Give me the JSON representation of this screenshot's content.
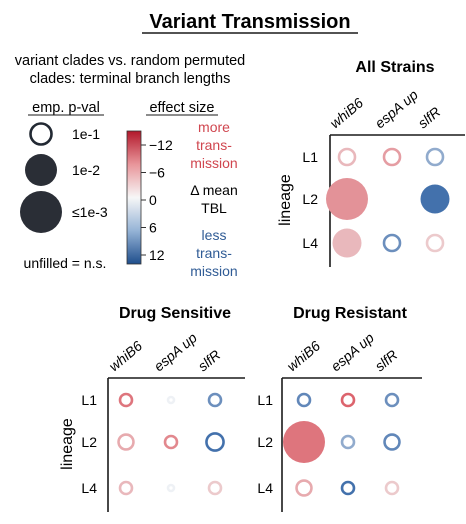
{
  "figure": {
    "title": "Variant Transmission",
    "subtitle_line1": "variant clades vs. random permuted",
    "subtitle_line2": "clades: terminal branch lengths",
    "pval_legend": {
      "heading": "emp. p-val",
      "entries": [
        "1e-1",
        "1e-2",
        "≤1e-3"
      ],
      "note": "unfilled = n.s."
    },
    "effect_legend": {
      "heading": "effect size",
      "ticks": [
        "−12",
        "−6",
        "0",
        "6",
        "12"
      ],
      "more_label": [
        "more",
        "trans-",
        "mission"
      ],
      "delta_label": [
        "Δ mean",
        "TBL"
      ],
      "less_label": [
        "less",
        "trans-",
        "mission"
      ]
    },
    "colors": {
      "negative": "#d9545e",
      "positive": "#3a6aa8",
      "text": "#1a1a1a",
      "more_text": "#d0464f",
      "less_text": "#2f5b95"
    }
  },
  "chart_data": [
    {
      "type": "scatter",
      "title": "All Strains",
      "x_categories": [
        "whiB6",
        "espA up",
        "slfR"
      ],
      "y_categories": [
        "L1",
        "L2",
        "L4"
      ],
      "ylabel": "lineage",
      "effect_range": [
        -12,
        12
      ],
      "points": [
        {
          "x": "whiB6",
          "y": "L1",
          "effect": -2,
          "pval": 0.1,
          "filled": false
        },
        {
          "x": "espA up",
          "y": "L1",
          "effect": -4,
          "pval": 0.1,
          "filled": false
        },
        {
          "x": "slfR",
          "y": "L1",
          "effect": 4,
          "pval": 0.1,
          "filled": false
        },
        {
          "x": "whiB6",
          "y": "L2",
          "effect": -5,
          "pval": 0.001,
          "filled": true
        },
        {
          "x": "slfR",
          "y": "L2",
          "effect": 11,
          "pval": 0.01,
          "filled": true
        },
        {
          "x": "whiB6",
          "y": "L4",
          "effect": -2,
          "pval": 0.01,
          "filled": true
        },
        {
          "x": "espA up",
          "y": "L4",
          "effect": 7,
          "pval": 0.1,
          "filled": false
        },
        {
          "x": "slfR",
          "y": "L4",
          "effect": -1,
          "pval": 0.1,
          "filled": false
        }
      ]
    },
    {
      "type": "scatter",
      "title": "Drug Sensitive",
      "x_categories": [
        "whiB6",
        "espA up",
        "slfR"
      ],
      "y_categories": [
        "L1",
        "L2",
        "L4"
      ],
      "ylabel": "lineage",
      "effect_range": [
        -12,
        12
      ],
      "points": [
        {
          "x": "whiB6",
          "y": "L1",
          "effect": -8,
          "pval": 0.1,
          "filled": false
        },
        {
          "x": "espA up",
          "y": "L1",
          "effect": 0,
          "pval": 0.5,
          "filled": false
        },
        {
          "x": "slfR",
          "y": "L1",
          "effect": 7,
          "pval": 0.1,
          "filled": false
        },
        {
          "x": "whiB6",
          "y": "L2",
          "effect": -3,
          "pval": 0.05,
          "filled": false
        },
        {
          "x": "espA up",
          "y": "L2",
          "effect": -6,
          "pval": 0.3,
          "filled": false
        },
        {
          "x": "slfR",
          "y": "L2",
          "effect": 11,
          "pval": 0.03,
          "filled": false
        },
        {
          "x": "whiB6",
          "y": "L4",
          "effect": -2,
          "pval": 0.1,
          "filled": false
        },
        {
          "x": "espA up",
          "y": "L4",
          "effect": 0,
          "pval": 0.9,
          "filled": false
        },
        {
          "x": "slfR",
          "y": "L4",
          "effect": -1,
          "pval": 0.3,
          "filled": false
        }
      ]
    },
    {
      "type": "scatter",
      "title": "Drug Resistant",
      "x_categories": [
        "whiB6",
        "espA up",
        "slfR"
      ],
      "y_categories": [
        "L1",
        "L2",
        "L4"
      ],
      "ylabel": "",
      "effect_range": [
        -12,
        12
      ],
      "points": [
        {
          "x": "whiB6",
          "y": "L1",
          "effect": 8,
          "pval": 0.1,
          "filled": false
        },
        {
          "x": "espA up",
          "y": "L1",
          "effect": -10,
          "pval": 0.1,
          "filled": false
        },
        {
          "x": "slfR",
          "y": "L1",
          "effect": 7,
          "pval": 0.2,
          "filled": false
        },
        {
          "x": "whiB6",
          "y": "L2",
          "effect": -8,
          "pval": 0.001,
          "filled": true
        },
        {
          "x": "espA up",
          "y": "L2",
          "effect": 4,
          "pval": 0.2,
          "filled": false
        },
        {
          "x": "slfR",
          "y": "L2",
          "effect": 8,
          "pval": 0.05,
          "filled": false
        },
        {
          "x": "whiB6",
          "y": "L4",
          "effect": -3,
          "pval": 0.05,
          "filled": false
        },
        {
          "x": "espA up",
          "y": "L4",
          "effect": 11,
          "pval": 0.1,
          "filled": false
        },
        {
          "x": "slfR",
          "y": "L4",
          "effect": -1,
          "pval": 0.2,
          "filled": false
        }
      ]
    }
  ]
}
